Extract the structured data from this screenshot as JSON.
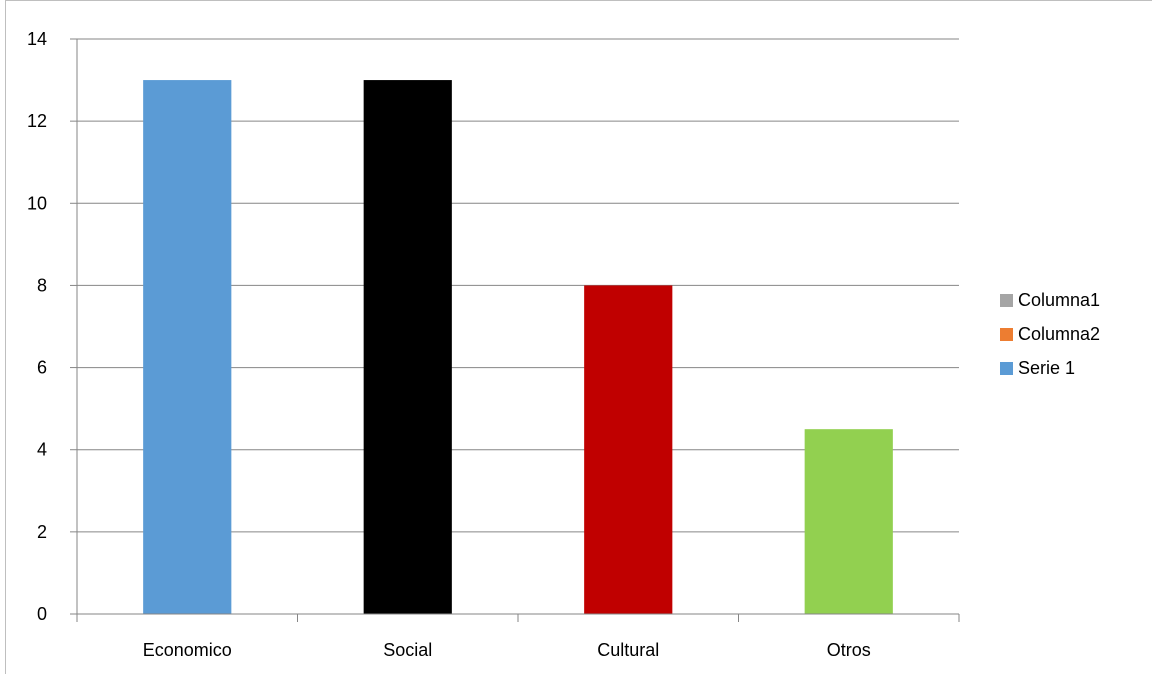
{
  "chart_data": {
    "type": "bar",
    "categories": [
      "Economico",
      "Social",
      "Cultural",
      "Otros"
    ],
    "values": [
      13,
      13,
      8,
      4.5
    ],
    "bar_colors": [
      "#5b9bd5",
      "#000000",
      "#c00000",
      "#92d050"
    ],
    "ylim": [
      0,
      14
    ],
    "yticks": [
      "0",
      "2",
      "4",
      "6",
      "8",
      "10",
      "12",
      "14"
    ],
    "grid": true,
    "legend_position": "right",
    "legend": [
      {
        "label": "Columna1",
        "color": "#a5a5a5"
      },
      {
        "label": "Columna2",
        "color": "#ed7d31"
      },
      {
        "label": "Serie 1",
        "color": "#5b9bd5"
      }
    ],
    "title": "",
    "xlabel": "",
    "ylabel": ""
  }
}
